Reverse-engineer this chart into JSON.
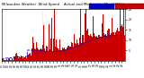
{
  "n_points": 1440,
  "ylim": [
    0,
    25
  ],
  "ylabel_ticks": [
    5,
    10,
    15,
    20,
    25
  ],
  "bar_color": "#cc0000",
  "line_color": "#0000cc",
  "bg_color": "#ffffff",
  "title_fontsize": 2.8,
  "tick_fontsize": 2.2,
  "n_xticks": 36,
  "vline_color": "#aaaaaa",
  "vline_positions": [
    480,
    960
  ]
}
